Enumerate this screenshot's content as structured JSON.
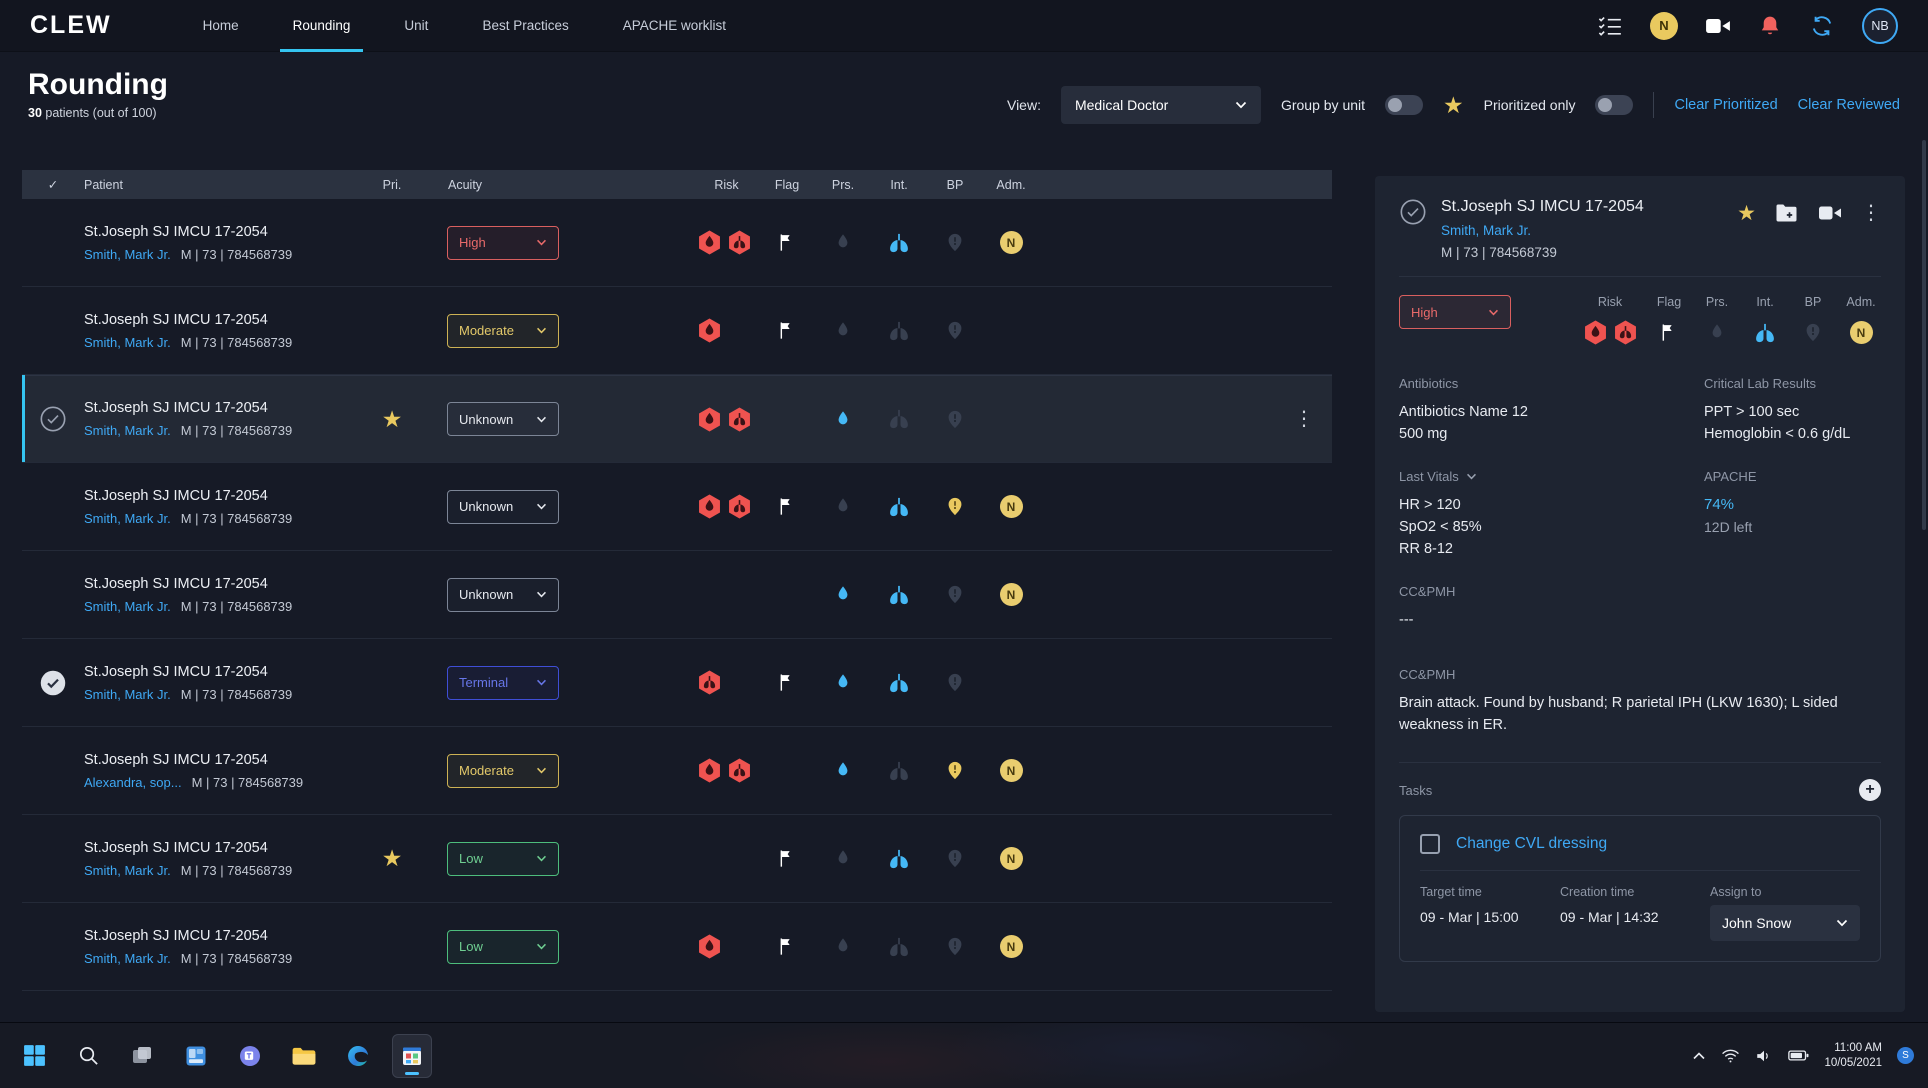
{
  "nav": {
    "logo": "CLEW",
    "items": [
      {
        "label": "Home",
        "active": false
      },
      {
        "label": "Rounding",
        "active": true
      },
      {
        "label": "Unit",
        "active": false
      },
      {
        "label": "Best Practices",
        "active": false
      },
      {
        "label": "APACHE worklist",
        "active": false
      }
    ],
    "notification_letter": "N",
    "user_initials": "NB"
  },
  "header": {
    "title": "Rounding",
    "patient_count": "30",
    "patient_count_label": "patients",
    "patient_count_note": "(out of 100)",
    "view_label": "View:",
    "view_value": "Medical Doctor",
    "group_by_unit_label": "Group by unit",
    "group_by_unit_on": false,
    "prioritized_only_label": "Prioritized only",
    "prioritized_only_on": false,
    "clear_prioritized": "Clear Prioritized",
    "clear_reviewed": "Clear Reviewed"
  },
  "table": {
    "columns": {
      "patient": "Patient",
      "pri": "Pri.",
      "acuity": "Acuity",
      "risk": "Risk",
      "flag": "Flag",
      "prs": "Prs.",
      "int": "Int.",
      "bp": "BP",
      "adm": "Adm."
    },
    "rows": [
      {
        "unit": "St.Joseph SJ IMCU 17-2054",
        "name": "Smith, Mark Jr.",
        "demographics": "M | 73 | 784568739",
        "reviewed": "none",
        "starred": false,
        "acuity": "High",
        "acuity_level": "high",
        "risk": [
          "blood",
          "lungs"
        ],
        "flag": true,
        "prs": false,
        "int": true,
        "bp": false,
        "adm": "N",
        "selected": false,
        "menu": false
      },
      {
        "unit": "St.Joseph SJ IMCU 17-2054",
        "name": "Smith, Mark Jr.",
        "demographics": "M | 73 | 784568739",
        "reviewed": "none",
        "starred": false,
        "acuity": "Moderate",
        "acuity_level": "moderate",
        "risk": [
          "blood"
        ],
        "flag": true,
        "prs": false,
        "int": false,
        "bp": false,
        "adm": null,
        "selected": false,
        "menu": false
      },
      {
        "unit": "St.Joseph SJ IMCU 17-2054",
        "name": "Smith, Mark Jr.",
        "demographics": "M | 73 | 784568739",
        "reviewed": "outline",
        "starred": true,
        "acuity": "Unknown",
        "acuity_level": "unknown",
        "risk": [
          "blood",
          "lungs"
        ],
        "flag": false,
        "prs": true,
        "int": false,
        "bp": false,
        "adm": null,
        "selected": true,
        "menu": true
      },
      {
        "unit": "St.Joseph SJ IMCU 17-2054",
        "name": "Smith, Mark Jr.",
        "demographics": "M | 73 | 784568739",
        "reviewed": "none",
        "starred": false,
        "acuity": "Unknown",
        "acuity_level": "unknown",
        "risk": [
          "blood",
          "lungs"
        ],
        "flag": true,
        "prs": false,
        "int": true,
        "bp": true,
        "adm": "N",
        "selected": false,
        "menu": false
      },
      {
        "unit": "St.Joseph SJ IMCU 17-2054",
        "name": "Smith, Mark Jr.",
        "demographics": "M | 73 | 784568739",
        "reviewed": "none",
        "starred": false,
        "acuity": "Unknown",
        "acuity_level": "unknown",
        "risk": [],
        "flag": false,
        "prs": true,
        "int": true,
        "bp": false,
        "adm": "N",
        "selected": false,
        "menu": false
      },
      {
        "unit": "St.Joseph SJ IMCU 17-2054",
        "name": "Smith, Mark Jr.",
        "demographics": "M | 73 | 784568739",
        "reviewed": "checked",
        "starred": false,
        "acuity": "Terminal",
        "acuity_level": "terminal",
        "risk": [
          "lungs"
        ],
        "flag": true,
        "prs": true,
        "int": true,
        "bp": false,
        "adm": null,
        "selected": false,
        "menu": false
      },
      {
        "unit": "St.Joseph SJ IMCU 17-2054",
        "name": "Alexandra, sop...",
        "demographics": "M | 73 | 784568739",
        "reviewed": "none",
        "starred": false,
        "acuity": "Moderate",
        "acuity_level": "moderate",
        "risk": [
          "blood",
          "lungs"
        ],
        "flag": false,
        "prs": true,
        "int": false,
        "bp": true,
        "adm": "N",
        "selected": false,
        "menu": false
      },
      {
        "unit": "St.Joseph SJ IMCU 17-2054",
        "name": "Smith, Mark Jr.",
        "demographics": "M | 73 | 784568739",
        "reviewed": "none",
        "starred": true,
        "acuity": "Low",
        "acuity_level": "low",
        "risk": [],
        "flag": true,
        "prs": false,
        "int": true,
        "bp": false,
        "adm": "N",
        "selected": false,
        "menu": false
      },
      {
        "unit": "St.Joseph SJ IMCU 17-2054",
        "name": "Smith, Mark Jr.",
        "demographics": "M | 73 | 784568739",
        "reviewed": "none",
        "starred": false,
        "acuity": "Low",
        "acuity_level": "low",
        "risk": [
          "blood"
        ],
        "flag": true,
        "prs": false,
        "int": false,
        "bp": false,
        "adm": "N",
        "selected": false,
        "menu": false
      }
    ]
  },
  "panel": {
    "unit": "St.Joseph SJ IMCU 17-2054",
    "name": "Smith, Mark Jr.",
    "demographics": "M | 73 | 784568739",
    "acuity": "High",
    "icon_columns": [
      "Risk",
      "Flag",
      "Prs.",
      "Int.",
      "BP",
      "Adm."
    ],
    "icons": {
      "risk": [
        "blood",
        "lungs"
      ],
      "flag": true,
      "prs": false,
      "int": true,
      "bp": false,
      "adm": "N"
    },
    "sections": {
      "antibiotics": {
        "label": "Antibiotics",
        "lines": [
          "Antibiotics Name 12",
          "500 mg"
        ]
      },
      "critical_labs": {
        "label": "Critical Lab Results",
        "lines": [
          "PPT > 100 sec",
          "Hemoglobin < 0.6 g/dL"
        ]
      },
      "last_vitals": {
        "label": "Last Vitals",
        "lines": [
          "HR > 120",
          "SpO2 < 85%",
          "RR 8-12"
        ]
      },
      "apache": {
        "label": "APACHE",
        "value": "74%",
        "sub": "12D left"
      },
      "ccpmh1": {
        "label": "CC&PMH",
        "text": "---"
      },
      "ccpmh2": {
        "label": "CC&PMH",
        "text": "Brain attack. Found by husband; R parietal IPH (LKW 1630); L sided weakness in ER."
      }
    },
    "tasks": {
      "label": "Tasks",
      "items": [
        {
          "title": "Change CVL dressing",
          "target_label": "Target time",
          "target": "09 - Mar | 15:00",
          "creation_label": "Creation time",
          "creation": "09 - Mar | 14:32",
          "assign_label": "Assign to",
          "assignee": "John Snow"
        }
      ]
    }
  },
  "taskbar": {
    "time": "11:00 AM",
    "date": "10/05/2021",
    "tray_badge": "S"
  }
}
